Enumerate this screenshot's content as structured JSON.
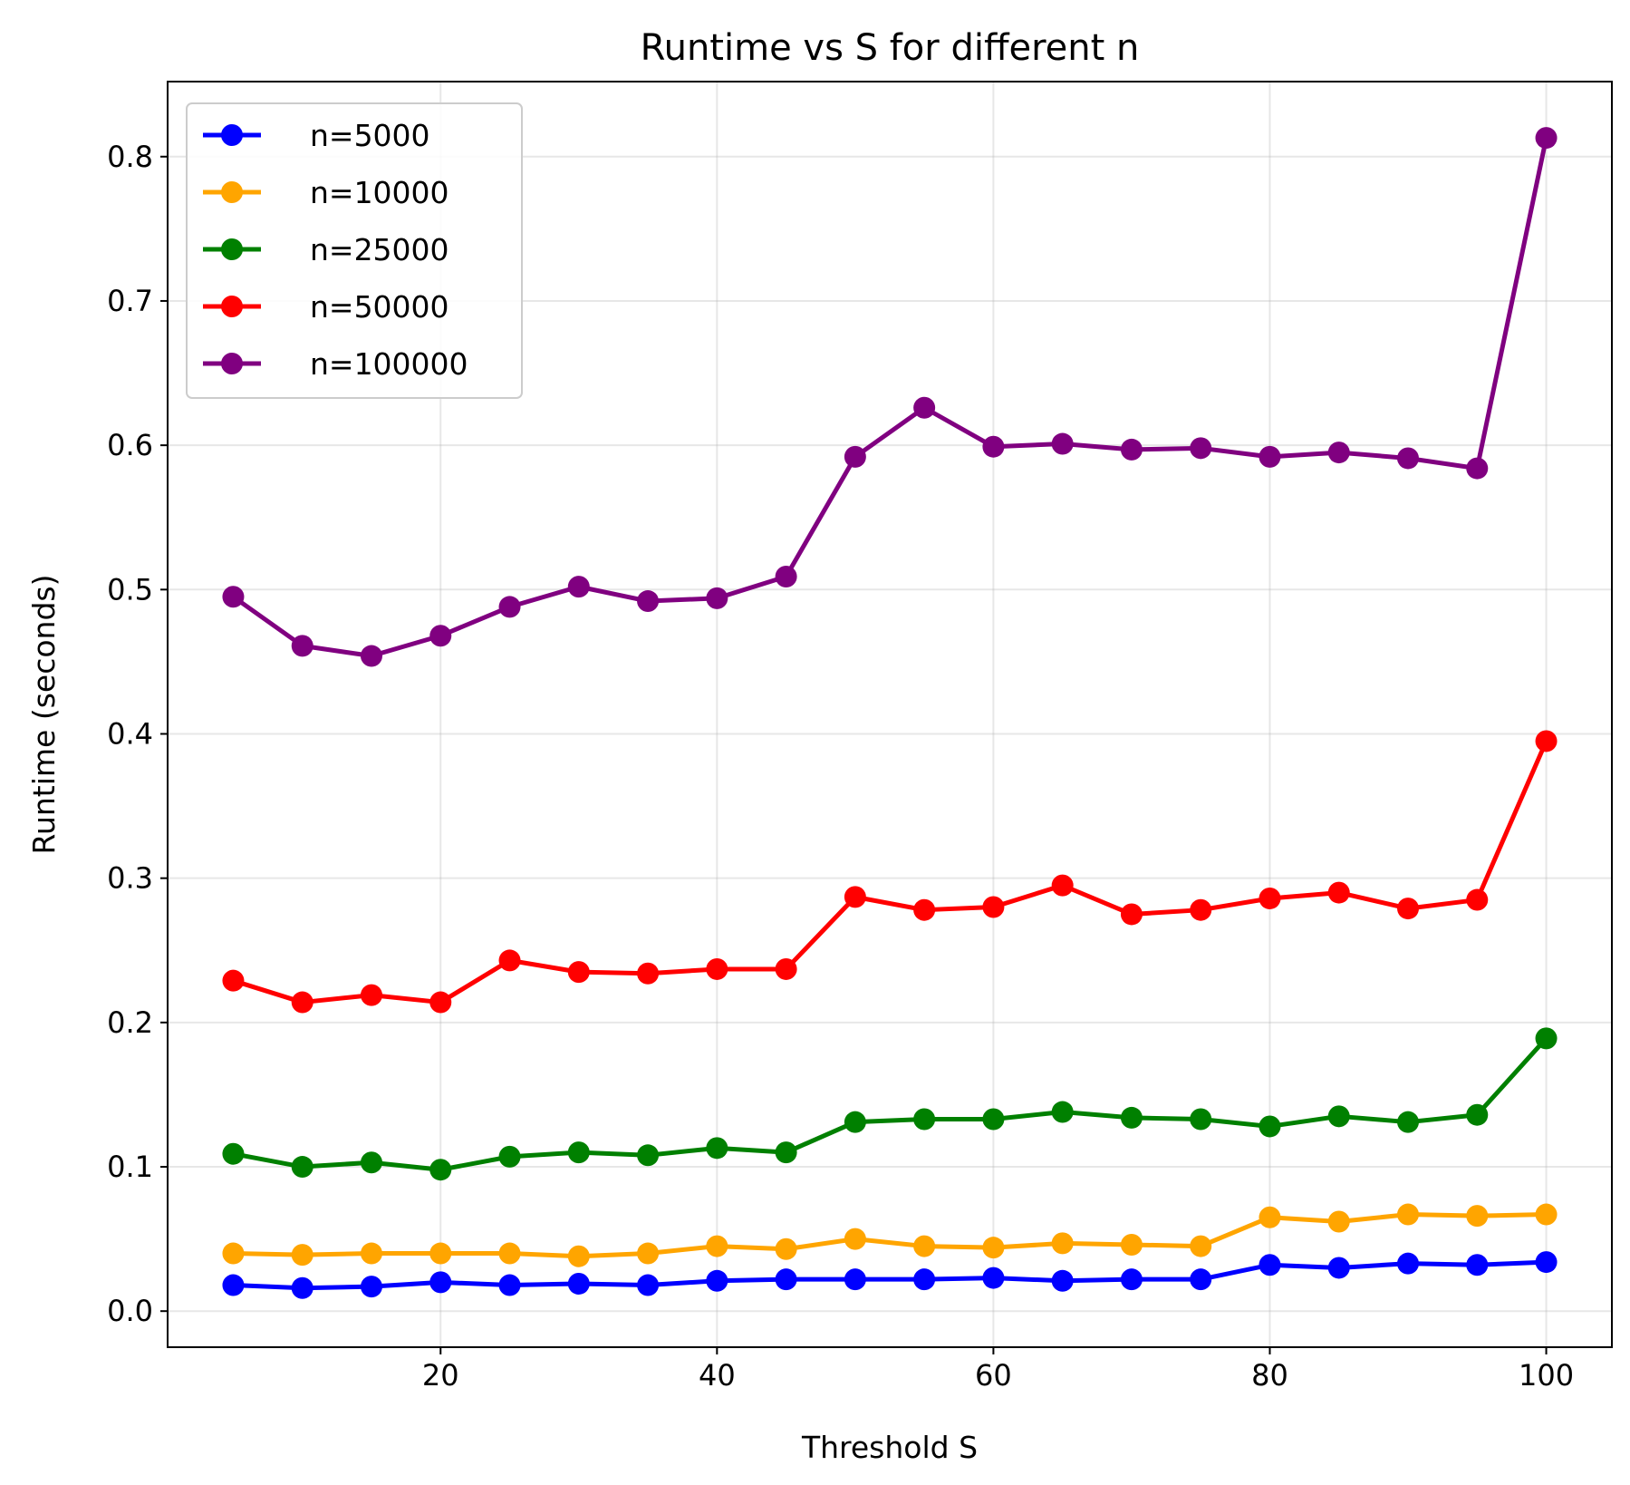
{
  "chart_data": {
    "type": "line",
    "title": "Runtime vs S for different n",
    "xlabel": "Threshold S",
    "ylabel": "Runtime (seconds)",
    "xlim": [
      0.25,
      104.75
    ],
    "ylim": [
      -0.025,
      0.852
    ],
    "xticks": [
      20,
      40,
      60,
      80,
      100
    ],
    "xtick_labels": [
      "20",
      "40",
      "60",
      "80",
      "100"
    ],
    "yticks": [
      0.0,
      0.1,
      0.2,
      0.3,
      0.4,
      0.5,
      0.6,
      0.7,
      0.8
    ],
    "ytick_labels": [
      "0.0",
      "0.1",
      "0.2",
      "0.3",
      "0.4",
      "0.5",
      "0.6",
      "0.7",
      "0.8"
    ],
    "grid": true,
    "legend_position": "top-left",
    "x": [
      5,
      10,
      15,
      20,
      25,
      30,
      35,
      40,
      45,
      50,
      55,
      60,
      65,
      70,
      75,
      80,
      85,
      90,
      95,
      100
    ],
    "series": [
      {
        "name": "n=5000",
        "color": "#0000ff",
        "values": [
          0.018,
          0.016,
          0.017,
          0.02,
          0.018,
          0.019,
          0.018,
          0.021,
          0.022,
          0.022,
          0.022,
          0.023,
          0.021,
          0.022,
          0.022,
          0.032,
          0.03,
          0.033,
          0.032,
          0.034
        ]
      },
      {
        "name": "n=10000",
        "color": "#ffa500",
        "values": [
          0.04,
          0.039,
          0.04,
          0.04,
          0.04,
          0.038,
          0.04,
          0.045,
          0.043,
          0.05,
          0.045,
          0.044,
          0.047,
          0.046,
          0.045,
          0.065,
          0.062,
          0.067,
          0.066,
          0.067
        ]
      },
      {
        "name": "n=25000",
        "color": "#008000",
        "values": [
          0.109,
          0.1,
          0.103,
          0.098,
          0.107,
          0.11,
          0.108,
          0.113,
          0.11,
          0.131,
          0.133,
          0.133,
          0.138,
          0.134,
          0.133,
          0.128,
          0.135,
          0.131,
          0.136,
          0.189
        ]
      },
      {
        "name": "n=50000",
        "color": "#ff0000",
        "values": [
          0.229,
          0.214,
          0.219,
          0.214,
          0.243,
          0.235,
          0.234,
          0.237,
          0.237,
          0.287,
          0.278,
          0.28,
          0.295,
          0.275,
          0.278,
          0.286,
          0.29,
          0.279,
          0.285,
          0.395
        ]
      },
      {
        "name": "n=100000",
        "color": "#800080",
        "values": [
          0.495,
          0.461,
          0.454,
          0.468,
          0.488,
          0.502,
          0.492,
          0.494,
          0.509,
          0.592,
          0.626,
          0.599,
          0.601,
          0.597,
          0.598,
          0.592,
          0.595,
          0.591,
          0.584,
          0.813
        ]
      }
    ]
  }
}
